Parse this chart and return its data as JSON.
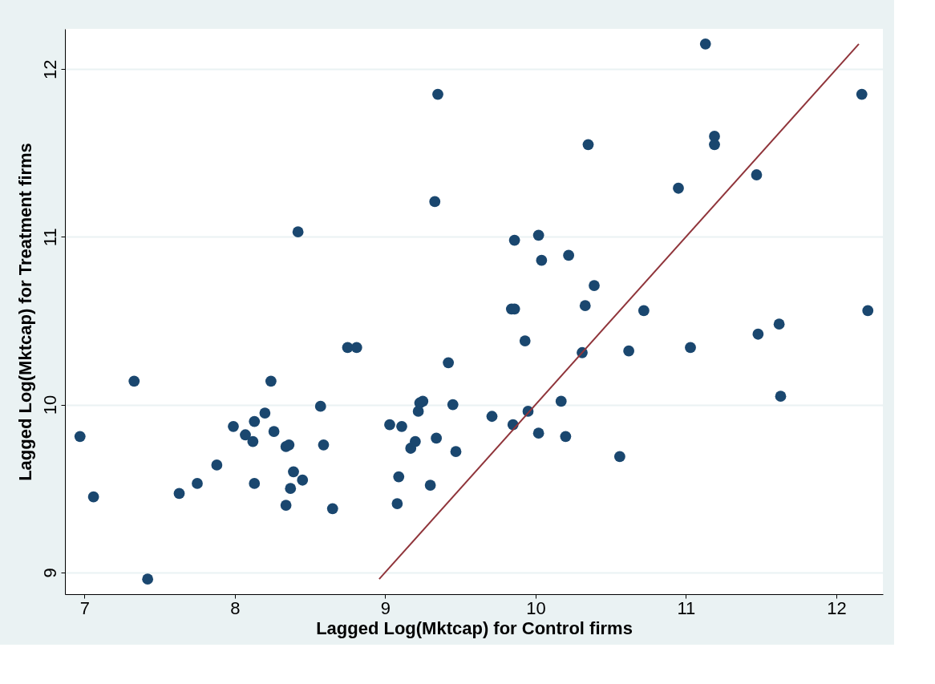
{
  "chart_data": {
    "type": "scatter",
    "xlabel": "Lagged Log(Mktcap) for Control firms",
    "ylabel": "Lagged Log(Mktcap) for Treatment firms",
    "xlim": [
      6.87,
      12.31
    ],
    "ylim": [
      8.87,
      12.24
    ],
    "xticks": [
      7,
      8,
      9,
      10,
      11,
      12
    ],
    "yticks": [
      9,
      10,
      11,
      12
    ],
    "grid": "y",
    "series": [
      {
        "marker": "circle",
        "color": "#1a476f",
        "x": [
          6.97,
          7.06,
          7.33,
          7.42,
          7.63,
          7.75,
          7.88,
          7.99,
          8.07,
          8.13,
          8.12,
          8.2,
          8.13,
          8.24,
          8.26,
          8.34,
          8.36,
          8.34,
          8.39,
          8.37,
          8.42,
          8.45,
          8.57,
          8.59,
          8.65,
          8.75,
          8.81,
          9.03,
          9.11,
          9.09,
          9.08,
          9.17,
          9.2,
          9.22,
          9.23,
          9.25,
          9.3,
          9.33,
          9.34,
          9.35,
          9.42,
          9.45,
          9.47,
          9.71,
          9.84,
          9.86,
          9.86,
          9.85,
          9.93,
          9.95,
          10.02,
          10.02,
          10.04,
          10.17,
          10.2,
          10.22,
          10.33,
          10.35,
          10.31,
          10.39,
          10.56,
          10.62,
          10.72,
          10.95,
          11.03,
          11.13,
          11.19,
          11.19,
          11.47,
          11.48,
          11.62,
          11.63,
          12.17,
          12.21
        ],
        "values": [
          9.81,
          9.45,
          10.14,
          8.96,
          9.47,
          9.53,
          9.64,
          9.87,
          9.82,
          9.9,
          9.78,
          9.95,
          9.53,
          10.14,
          9.84,
          9.75,
          9.76,
          9.4,
          9.6,
          9.5,
          11.03,
          9.55,
          9.99,
          9.76,
          9.38,
          10.34,
          10.34,
          9.88,
          9.87,
          9.57,
          9.41,
          9.74,
          9.78,
          9.96,
          10.01,
          10.02,
          9.52,
          11.21,
          9.8,
          11.85,
          10.25,
          10.0,
          9.72,
          9.93,
          10.57,
          10.57,
          10.98,
          9.88,
          10.38,
          9.96,
          11.01,
          9.83,
          10.86,
          10.02,
          9.81,
          10.89,
          10.59,
          11.55,
          10.31,
          10.71,
          9.69,
          10.32,
          10.56,
          11.29,
          10.34,
          12.15,
          11.6,
          11.55,
          11.37,
          10.42,
          10.48,
          10.05,
          11.85,
          10.56
        ]
      },
      {
        "type": "line",
        "marker": "none",
        "color": "#90353b",
        "x": [
          8.96,
          12.15
        ],
        "values": [
          8.96,
          12.15
        ],
        "line_style": "solid"
      }
    ]
  }
}
